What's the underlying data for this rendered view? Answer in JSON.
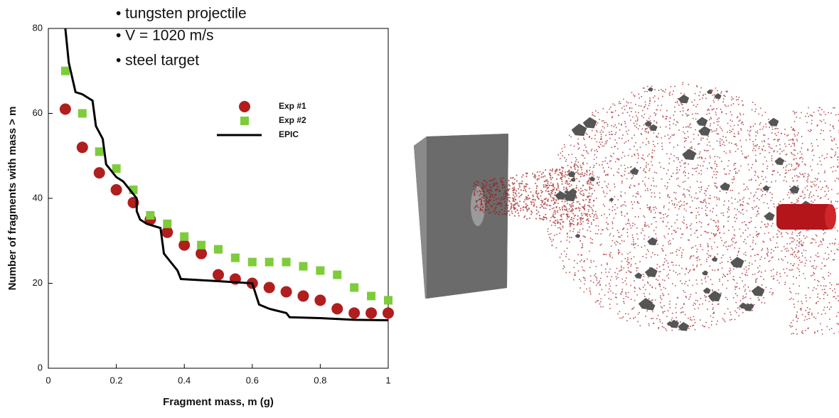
{
  "chart_data": {
    "type": "scatter",
    "annotations": [
      "• tungsten projectile",
      "• V = 1020 m/s",
      "• steel target"
    ],
    "x_label": "Fragment mass, m (g)",
    "y_label": "Number of fragments with mass > m",
    "xlim": [
      0,
      1
    ],
    "ylim": [
      0,
      80
    ],
    "xticks": [
      0,
      0.2,
      0.4,
      0.6,
      0.8,
      1
    ],
    "yticks": [
      0,
      20,
      40,
      60,
      80
    ],
    "legend": "upper right",
    "series": [
      {
        "name": "Exp #1",
        "type": "scatter",
        "marker": "circle",
        "color": "#b01e1e",
        "x": [
          0.05,
          0.1,
          0.15,
          0.2,
          0.25,
          0.3,
          0.35,
          0.4,
          0.45,
          0.5,
          0.55,
          0.6,
          0.65,
          0.7,
          0.75,
          0.8,
          0.85,
          0.9,
          0.95,
          1
        ],
        "values": [
          61,
          52,
          46,
          42,
          39,
          35,
          32,
          29,
          27,
          22,
          21,
          20,
          19,
          18,
          17,
          16,
          14,
          13,
          13,
          13
        ]
      },
      {
        "name": "Exp #2",
        "type": "scatter",
        "marker": "square",
        "color": "#7dcc3a",
        "x": [
          0.05,
          0.1,
          0.15,
          0.2,
          0.25,
          0.3,
          0.35,
          0.4,
          0.45,
          0.5,
          0.55,
          0.6,
          0.65,
          0.7,
          0.75,
          0.8,
          0.85,
          0.9,
          0.95,
          1
        ],
        "values": [
          70,
          60,
          51,
          47,
          42,
          36,
          34,
          31,
          29,
          28,
          26,
          25,
          25,
          25,
          24,
          23,
          22,
          19,
          17,
          16
        ]
      },
      {
        "name": "EPIC",
        "type": "line",
        "color": "#000000",
        "x": [
          0.05,
          0.06,
          0.08,
          0.1,
          0.13,
          0.14,
          0.16,
          0.17,
          0.2,
          0.22,
          0.24,
          0.26,
          0.26,
          0.27,
          0.29,
          0.33,
          0.34,
          0.36,
          0.38,
          0.39,
          0.5,
          0.6,
          0.62,
          0.65,
          0.7,
          0.71,
          0.8,
          0.9,
          1
        ],
        "values": [
          80,
          72,
          65,
          64.5,
          63,
          57,
          54,
          48,
          45,
          44,
          42,
          40,
          37,
          35,
          34,
          33,
          27,
          25,
          23,
          21,
          20.5,
          20,
          15,
          14,
          13,
          12,
          11.8,
          11.4,
          11.3
        ]
      }
    ]
  }
}
